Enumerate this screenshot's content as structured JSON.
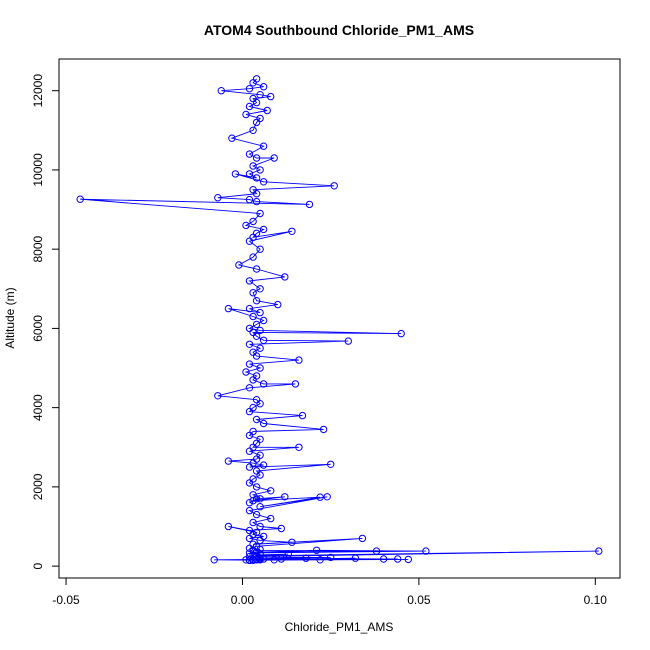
{
  "chart_data": {
    "type": "line",
    "title": "ATOM4 Southbound Chloride_PM1_AMS",
    "xlabel": "Chloride_PM1_AMS",
    "ylabel": "Altitude (m)",
    "xlim": [
      -0.052,
      0.107
    ],
    "ylim": [
      -300,
      12800
    ],
    "x_ticks": [
      -0.05,
      0.0,
      0.05,
      0.1
    ],
    "x_tick_labels": [
      "-0.05",
      "0.00",
      "0.05",
      "0.10"
    ],
    "y_ticks": [
      0,
      2000,
      4000,
      6000,
      8000,
      10000,
      12000
    ],
    "y_tick_labels": [
      "0",
      "2000",
      "4000",
      "6000",
      "8000",
      "10000",
      "12000"
    ],
    "grid": false,
    "legend": "none",
    "marker": "open-circle",
    "color": "#0000ff",
    "series": [
      {
        "x": [
          0.004,
          0.003,
          0.006,
          0.002,
          -0.006,
          0.005,
          0.008,
          0.003,
          0.004,
          0.002,
          0.007,
          0.001,
          0.005,
          0.004,
          0.003,
          -0.003,
          0.006,
          0.002,
          0.004,
          0.009,
          0.003,
          0.005,
          0.002,
          0.004,
          -0.002,
          0.006,
          0.026,
          0.003,
          0.004,
          -0.007,
          0.002,
          0.004,
          0.019,
          -0.046,
          0.005,
          0.003,
          0.001,
          0.006,
          0.004,
          0.003,
          0.014,
          0.002,
          0.005,
          0.003,
          -0.001,
          0.004,
          0.012,
          0.002,
          0.005,
          0.003,
          0.004,
          0.01,
          0.002,
          0.005,
          -0.004,
          0.003,
          0.006,
          0.004,
          0.002,
          0.005,
          0.045,
          0.003,
          0.004,
          0.006,
          0.03,
          0.002,
          0.005,
          0.003,
          0.004,
          0.016,
          0.002,
          0.005,
          0.001,
          0.004,
          0.003,
          0.006,
          0.015,
          0.002,
          -0.007,
          0.004,
          0.005,
          0.003,
          0.002,
          0.017,
          0.004,
          0.006,
          0.023,
          0.003,
          0.002,
          0.005,
          0.004,
          0.003,
          0.016,
          0.002,
          0.005,
          0.004,
          -0.004,
          0.003,
          0.006,
          0.002,
          0.025,
          0.004,
          0.005,
          0.003,
          0.002,
          0.004,
          0.008,
          0.003,
          0.005,
          0.002,
          0.004,
          0.012,
          0.003,
          0.022,
          0.005,
          0.024,
          0.002,
          0.004,
          0.008,
          0.003,
          0.005,
          0.011,
          0.002,
          -0.004,
          0.004,
          0.003,
          0.006,
          0.002,
          0.005,
          0.014,
          0.003,
          0.034,
          0.004,
          0.002,
          0.005,
          0.003,
          0.038,
          0.004,
          0.021,
          0.052,
          0.002,
          0.005,
          0.003,
          0.013,
          0.004,
          0.101,
          0.002,
          0.025,
          0.005,
          0.04,
          0.003,
          0.004,
          0.018,
          0.002,
          0.044,
          0.005,
          0.001,
          0.003,
          0.032,
          0.004,
          0.009,
          0.002,
          0.047,
          0.005,
          0.003,
          -0.008,
          0.004,
          0.011,
          0.002,
          0.022,
          0.005,
          0.006
        ],
        "y": [
          12300,
          12200,
          12100,
          12050,
          12000,
          11900,
          11850,
          11800,
          11700,
          11600,
          11500,
          11400,
          11300,
          11200,
          11000,
          10800,
          10600,
          10400,
          10300,
          10300,
          10100,
          10000,
          9900,
          9800,
          9900,
          9700,
          9600,
          9500,
          9400,
          9300,
          9250,
          9200,
          9130,
          9260,
          8900,
          8700,
          8600,
          8500,
          8400,
          8300,
          8450,
          8200,
          8000,
          7800,
          7600,
          7500,
          7300,
          7200,
          7000,
          6900,
          6700,
          6600,
          6500,
          6400,
          6500,
          6300,
          6200,
          6100,
          6000,
          5950,
          5870,
          5900,
          5800,
          5700,
          5680,
          5600,
          5500,
          5400,
          5300,
          5200,
          5100,
          5000,
          4900,
          4800,
          4700,
          4600,
          4600,
          4500,
          4300,
          4200,
          4100,
          4000,
          3900,
          3800,
          3700,
          3600,
          3450,
          3400,
          3300,
          3200,
          3100,
          3000,
          3000,
          2900,
          2800,
          2700,
          2650,
          2600,
          2550,
          2500,
          2570,
          2400,
          2300,
          2200,
          2100,
          2000,
          1900,
          1800,
          1700,
          1600,
          1700,
          1750,
          1650,
          1740,
          1500,
          1750,
          1400,
          1300,
          1200,
          1100,
          1000,
          950,
          900,
          1000,
          850,
          800,
          750,
          700,
          650,
          600,
          550,
          700,
          500,
          450,
          420,
          400,
          380,
          350,
          400,
          380,
          330,
          300,
          280,
          300,
          260,
          380,
          240,
          220,
          200,
          180,
          170,
          160,
          200,
          150,
          180,
          170,
          160,
          150,
          200,
          170,
          160,
          150,
          170,
          160,
          150,
          160,
          170,
          180,
          150,
          160,
          170,
          180
        ]
      }
    ]
  }
}
